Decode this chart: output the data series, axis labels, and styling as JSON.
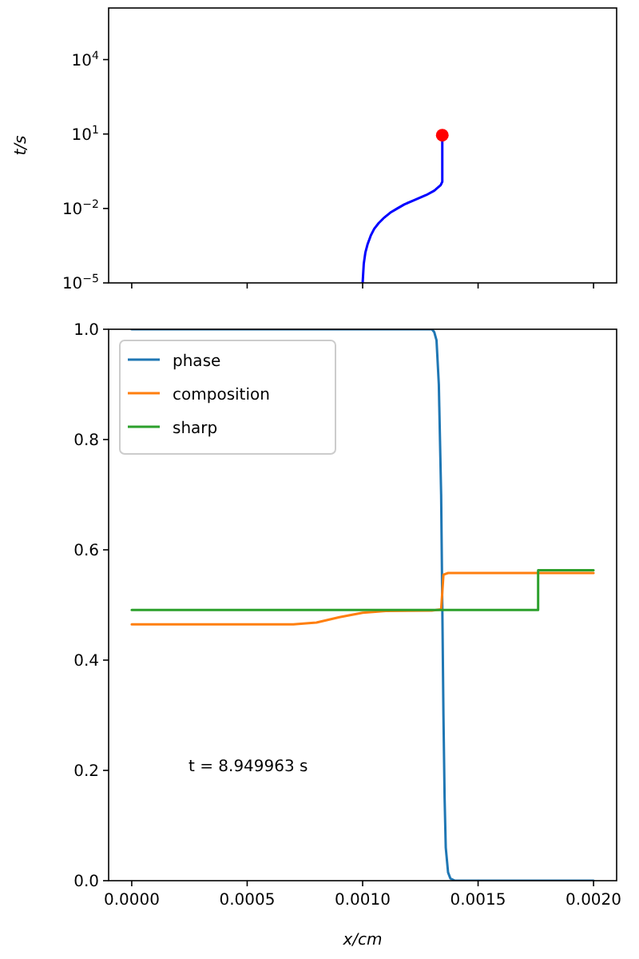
{
  "chart_data": [
    {
      "type": "line",
      "ylabel": "t/s",
      "log": "y",
      "tick_labels": "y",
      "xlim": [
        -0.0001,
        0.0021
      ],
      "ylim": [
        1e-05,
        1200000
      ],
      "xticks": [
        {
          "value": 0,
          "label": null
        },
        {
          "value": 0.0005,
          "label": null
        },
        {
          "value": 0.001,
          "label": null
        },
        {
          "value": 0.0015,
          "label": null
        },
        {
          "value": 0.002,
          "label": null
        }
      ],
      "yticks": [
        {
          "value": 1e-05,
          "label": "10$^{−5}$"
        },
        {
          "value": 0.01,
          "label": "10$^{−2}$"
        },
        {
          "value": 10,
          "label": "10$^{1}$"
        },
        {
          "value": 10000,
          "label": "10$^{4}$"
        }
      ],
      "series": [
        {
          "color": "#0000ff",
          "x": [
            0.001,
            0.001005,
            0.001012,
            0.001021,
            0.001035,
            0.00105,
            0.00107,
            0.00109,
            0.00112,
            0.00115,
            0.00118,
            0.00122,
            0.001276,
            0.00131,
            0.001338,
            0.001345,
            0.001345
          ],
          "values": [
            1e-05,
            6e-05,
            0.00017,
            0.00035,
            0.0008,
            0.0015,
            0.0026,
            0.004,
            0.0068,
            0.01,
            0.0145,
            0.021,
            0.035,
            0.052,
            0.087,
            0.12,
            8.949963
          ]
        },
        {
          "type": "scatter",
          "marker": "circle",
          "color": "#ff0000",
          "x": [
            0.001345
          ],
          "values": [
            8.949963
          ]
        }
      ]
    },
    {
      "type": "line",
      "xlabel": "x/cm",
      "legend": "top left",
      "xlim": [
        -0.0001,
        0.0021
      ],
      "ylim": [
        0,
        1
      ],
      "xticks": [
        {
          "value": 0,
          "label": "0.0000"
        },
        {
          "value": 0.0005,
          "label": "0.0005"
        },
        {
          "value": 0.001,
          "label": "0.0010"
        },
        {
          "value": 0.0015,
          "label": "0.0015"
        },
        {
          "value": 0.002,
          "label": "0.0020"
        }
      ],
      "yticks": [
        {
          "value": 0,
          "label": "0.0"
        },
        {
          "value": 0.2,
          "label": "0.2"
        },
        {
          "value": 0.4,
          "label": "0.4"
        },
        {
          "value": 0.6,
          "label": "0.6"
        },
        {
          "value": 0.8,
          "label": "0.8"
        },
        {
          "value": 1,
          "label": "1.0"
        }
      ],
      "annotations": [
        "t = 8.949963 s"
      ],
      "series": [
        {
          "name": "phase",
          "color": "#1f77b4",
          "x": [
            0,
            0.0013,
            0.00131,
            0.00132,
            0.00133,
            0.00134,
            0.001345,
            0.00135,
            0.001355,
            0.00136,
            0.00137,
            0.00138,
            0.0014,
            0.002
          ],
          "values": [
            1,
            1,
            0.995,
            0.98,
            0.9,
            0.7,
            0.5,
            0.3,
            0.15,
            0.06,
            0.015,
            0.004,
            0,
            0
          ]
        },
        {
          "name": "composition",
          "color": "#ff7f0e",
          "x": [
            0,
            0.0007,
            0.0008,
            0.0009,
            0.001,
            0.0011,
            0.0013,
            0.00134,
            0.00135,
            0.00137,
            0.002
          ],
          "values": [
            0.465,
            0.465,
            0.468,
            0.478,
            0.486,
            0.489,
            0.49,
            0.492,
            0.555,
            0.558,
            0.558
          ]
        },
        {
          "name": "sharp",
          "color": "#2ca02c",
          "x": [
            0,
            0.00176,
            0.00176,
            0.002
          ],
          "values": [
            0.491,
            0.491,
            0.563,
            0.563
          ]
        }
      ]
    }
  ]
}
